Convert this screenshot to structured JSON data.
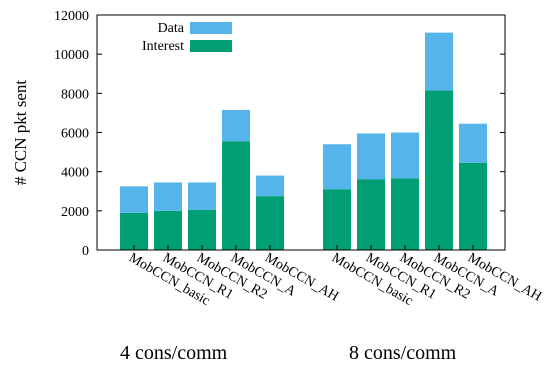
{
  "chart_data": {
    "type": "bar",
    "stacked": true,
    "ylabel": "# CCN pkt sent",
    "ylim": [
      0,
      12000
    ],
    "yticks": [
      0,
      2000,
      4000,
      6000,
      8000,
      10000,
      12000
    ],
    "groups": [
      {
        "label": "4 cons/comm",
        "categories": [
          "MobCCN_basic",
          "MobCCN_R1",
          "MobCCN_R2",
          "MobCCN_A",
          "MobCCN_AH"
        ],
        "series": [
          {
            "name": "Interest",
            "values": [
              1900,
              2000,
              2050,
              5550,
              2750
            ]
          },
          {
            "name": "Data",
            "values": [
              1350,
              1450,
              1400,
              1600,
              1050
            ]
          }
        ]
      },
      {
        "label": "8 cons/comm",
        "categories": [
          "MobCCN_basic",
          "MobCCN_R1",
          "MobCCN_R2",
          "MobCCN_A",
          "MobCCN_AH"
        ],
        "series": [
          {
            "name": "Interest",
            "values": [
              3100,
              3600,
              3650,
              8150,
              4450
            ]
          },
          {
            "name": "Data",
            "values": [
              2300,
              2350,
              2350,
              2950,
              2000
            ]
          }
        ]
      }
    ],
    "legend": {
      "placement": "top-left",
      "entries": [
        {
          "name": "Data",
          "color": "#55b4e9"
        },
        {
          "name": "Interest",
          "color": "#009e73"
        }
      ]
    },
    "colors": {
      "Interest": "#009e73",
      "Data": "#55b4e9"
    }
  }
}
